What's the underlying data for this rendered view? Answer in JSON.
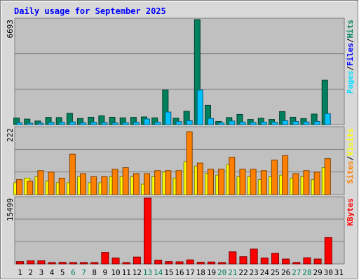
{
  "chart_data": {
    "type": "bar",
    "title": "Daily usage for September 2025",
    "categories": [
      "1",
      "2",
      "3",
      "4",
      "5",
      "6",
      "7",
      "8",
      "9",
      "10",
      "11",
      "12",
      "13",
      "14",
      "15",
      "16",
      "17",
      "18",
      "19",
      "20",
      "21",
      "22",
      "23",
      "24",
      "25",
      "26",
      "27",
      "28",
      "29",
      "30",
      "31"
    ],
    "weekend_days": [
      "6",
      "7",
      "13",
      "14",
      "20",
      "21",
      "27",
      "28"
    ],
    "colors": {
      "hits": "#00805c",
      "files": "#00c0ff",
      "pages": "#00e0ff",
      "visits": "#ffff00",
      "sites": "#ff8000",
      "kbytes": "#ff0000",
      "title": "#0000ff",
      "weekend_label": "#00805c",
      "weekday_label": "#000000",
      "panel_bg": "#c0c0c0",
      "frame_bg": "#d8d8d8"
    },
    "panels": [
      {
        "id": "hits-files-pages",
        "ymax_label": "6693",
        "ymax": 6693,
        "legend": [
          {
            "text": "Pages",
            "color": "#00e0ff"
          },
          {
            "text": "/",
            "color": "#000000"
          },
          {
            "text": "Files",
            "color": "#0000ff"
          },
          {
            "text": "/",
            "color": "#000000"
          },
          {
            "text": "Hits",
            "color": "#00805c"
          }
        ],
        "series": [
          {
            "name": "Hits",
            "values": [
              420,
              350,
              230,
              460,
              450,
              720,
              390,
              470,
              560,
              470,
              430,
              460,
              490,
              430,
              2200,
              410,
              850,
              6693,
              1230,
              200,
              450,
              650,
              330,
              400,
              330,
              830,
              470,
              380,
              670,
              2840,
              0
            ]
          },
          {
            "name": "Files",
            "values": [
              110,
              90,
              60,
              140,
              140,
              170,
              120,
              150,
              130,
              110,
              120,
              150,
              360,
              150,
              800,
              190,
              250,
              2200,
              390,
              110,
              230,
              160,
              140,
              160,
              150,
              250,
              200,
              170,
              200,
              700,
              0
            ]
          }
        ]
      },
      {
        "id": "visits-sites",
        "ymax_label": "222",
        "ymax": 222,
        "legend": [
          {
            "text": "Sites",
            "color": "#ff8000"
          },
          {
            "text": "/",
            "color": "#000000"
          },
          {
            "text": "Visits",
            "color": "#ffff00"
          }
        ],
        "series": [
          {
            "name": "Visits",
            "values": [
              40,
              55,
              60,
              45,
              40,
              40,
              60,
              40,
              40,
              60,
              60,
              60,
              35,
              60,
              75,
              55,
              110,
              95,
              70,
              65,
              100,
              60,
              60,
              50,
              60,
              65,
              55,
              60,
              50,
              90,
              0
            ]
          },
          {
            "name": "Sites",
            "values": [
              50,
              45,
              80,
              75,
              55,
              135,
              70,
              60,
              60,
              85,
              90,
              70,
              70,
              80,
              80,
              80,
              210,
              105,
              85,
              85,
              125,
              85,
              85,
              80,
              115,
              130,
              70,
              80,
              75,
              120,
              0
            ]
          }
        ]
      },
      {
        "id": "kbytes",
        "ymax_label": "15499",
        "ymax": 15499,
        "legend": [
          {
            "text": "KBytes",
            "color": "#ff0000"
          }
        ],
        "series": [
          {
            "name": "KBytes",
            "values": [
              550,
              720,
              740,
              200,
              380,
              200,
              200,
              200,
              2700,
              1400,
              200,
              1620,
              15499,
              880,
              550,
              500,
              950,
              400,
              450,
              200,
              2850,
              1700,
              3500,
              1400,
              2500,
              1150,
              350,
              1450,
              1150,
              6200,
              0
            ]
          }
        ]
      }
    ]
  }
}
